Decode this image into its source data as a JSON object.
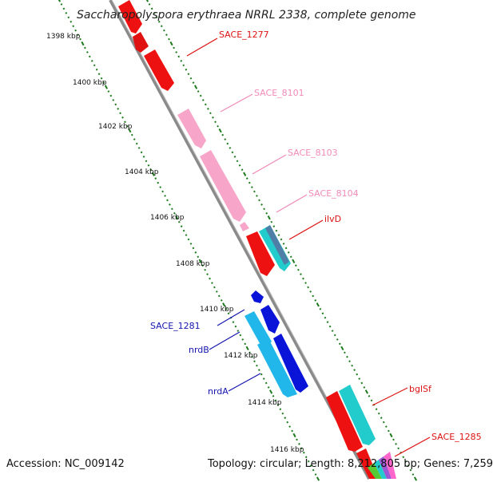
{
  "title": "Saccharopolyspora erythraea NRRL 2338, complete genome",
  "footer": {
    "accession": "Accession: NC_009142",
    "summary": "Topology: circular; Length: 8,212,805 bp; Genes: 7,259"
  },
  "colors": {
    "backbone": "#8a8a8a",
    "ticks": "#1b7a1b",
    "red": "#ee1111",
    "pink": "#f7a6c9",
    "teal": "#22cccc",
    "blue": "#0a14d8",
    "lightblue": "#22b7ea",
    "steel": "#4f7fa6"
  },
  "kbp_ticks": [
    "1398 kbp",
    "1400 kbp",
    "1402 kbp",
    "1404 kbp",
    "1406 kbp",
    "1408 kbp",
    "1410 kbp",
    "1412 kbp",
    "1414 kbp",
    "1416 kbp"
  ],
  "gene_labels": [
    {
      "text": "SACE_1277",
      "color": "#dd1111"
    },
    {
      "text": "SACE_8101",
      "color": "#f28ab8"
    },
    {
      "text": "SACE_8103",
      "color": "#f28ab8"
    },
    {
      "text": "SACE_8104",
      "color": "#f28ab8"
    },
    {
      "text": "ilvD",
      "color": "#dd1111"
    },
    {
      "text": "SACE_1281",
      "color": "#1515b0"
    },
    {
      "text": "nrdB",
      "color": "#1515b0"
    },
    {
      "text": "nrdA",
      "color": "#1515b0"
    },
    {
      "text": "bglSf",
      "color": "#dd1111"
    },
    {
      "text": "SACE_1285",
      "color": "#dd1111"
    }
  ]
}
